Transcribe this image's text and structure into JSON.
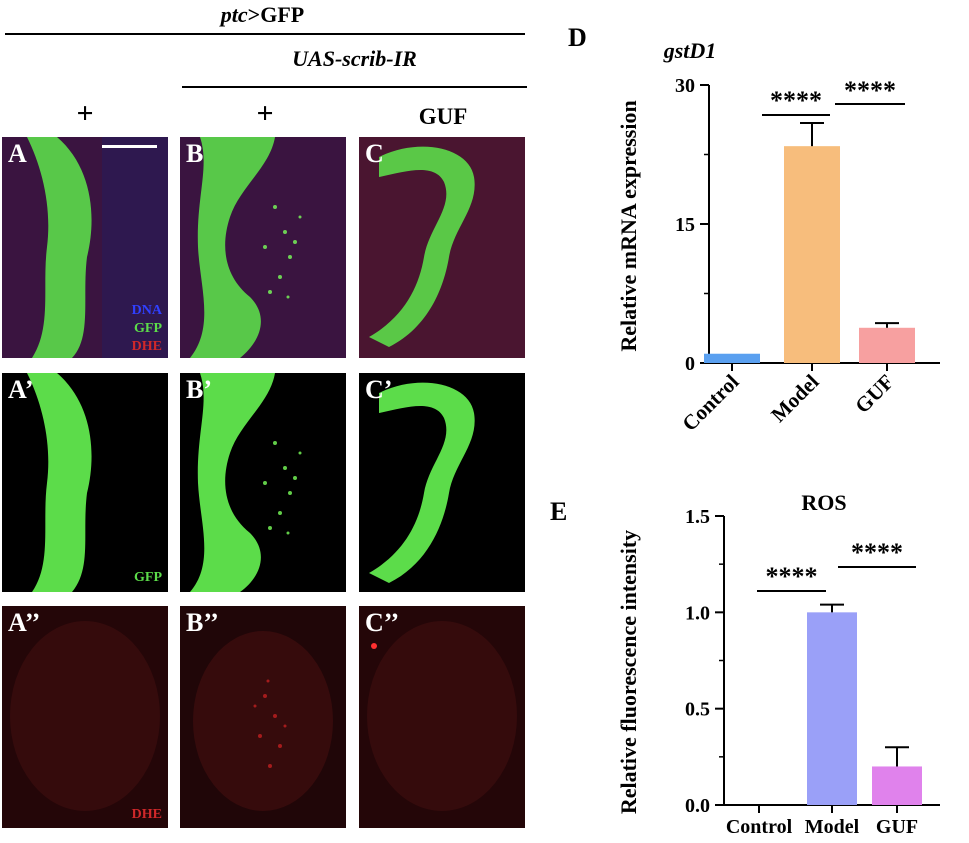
{
  "header": {
    "ptc_italic": "ptc",
    "ptc_rest": ">GFP",
    "uas": "UAS-scrib-IR",
    "col_labels": [
      "+",
      "+",
      "GUF"
    ]
  },
  "panels": {
    "labels": [
      "A",
      "B",
      "C",
      "A’",
      "B’",
      "C’",
      "A’’",
      "B’’",
      "C’’"
    ],
    "channel_dna": "DNA",
    "channel_gfp": "GFP",
    "channel_dhe": "DHE"
  },
  "colors": {
    "green": "#5cdc4a",
    "red": "#d0282a",
    "blue": "#3040ff",
    "bar_control": "#5aa0f0",
    "bar_model_d": "#f7bd7c",
    "bar_guf_d": "#f7a0a0",
    "bar_model_e": "#9aa0f8",
    "bar_guf_e": "#e082ec"
  },
  "chart_data": [
    {
      "panel_letter": "D",
      "type": "bar",
      "title": "gstD1",
      "ylabel": "Relative mRNA expression",
      "categories": [
        "Control",
        "Model",
        "GUF"
      ],
      "values": [
        1.0,
        23.4,
        3.8
      ],
      "errors": [
        0,
        2.5,
        0.5
      ],
      "ylim": [
        0,
        30
      ],
      "yticks": [
        "0",
        "15",
        "30"
      ],
      "significance": [
        "****",
        "****"
      ]
    },
    {
      "panel_letter": "E",
      "type": "bar",
      "title": "ROS",
      "ylabel": "Relative fluorescence intensity",
      "categories": [
        "Control",
        "Model",
        "GUF"
      ],
      "values": [
        0.0,
        1.0,
        0.2
      ],
      "errors": [
        0,
        0.04,
        0.1
      ],
      "ylim": [
        0,
        1.5
      ],
      "yticks": [
        "0.0",
        "0.5",
        "1.0",
        "1.5"
      ],
      "significance": [
        "****",
        "****"
      ]
    }
  ]
}
